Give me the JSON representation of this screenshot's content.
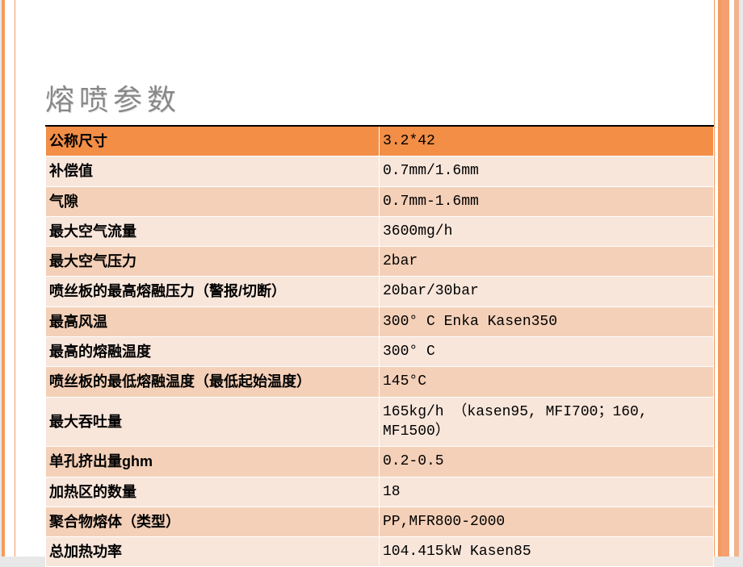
{
  "title": "熔喷参数",
  "table": {
    "header": {
      "label": "公称尺寸",
      "value": "3.2*42"
    },
    "rows": [
      {
        "label": "补偿值",
        "value": "0.7mm/1.6mm"
      },
      {
        "label": "气隙",
        "value": "0.7mm-1.6mm"
      },
      {
        "label": "最大空气流量",
        "value": "3600mg/h"
      },
      {
        "label": "最大空气压力",
        "value": "2bar"
      },
      {
        "label": "喷丝板的最高熔融压力（警报/切断）",
        "value": "20bar/30bar"
      },
      {
        "label": "最高风温",
        "value": "300° C  Enka  Kasen350"
      },
      {
        "label": "最高的熔融温度",
        "value": "300° C"
      },
      {
        "label": "喷丝板的最低熔融温度（最低起始温度）",
        "value": "145°C"
      },
      {
        "label": "最大吞吐量",
        "value": "165kg/h   （kasen95, MFI700；160, MF1500）"
      },
      {
        "label": "单孔挤出量ghm",
        "value": "0.2-0.5"
      },
      {
        "label": "加热区的数量",
        "value": "18"
      },
      {
        "label": "聚合物熔体（类型）",
        "value": "PP,MFR800-2000"
      },
      {
        "label": "总加热功率",
        "value": "104.415kW    Kasen85"
      }
    ]
  },
  "colors": {
    "accent": "#f59a5e",
    "header_bg": "#f38e46",
    "row_light": "#f8e6db",
    "row_dark": "#f4d0b8",
    "title_color": "#888888"
  }
}
